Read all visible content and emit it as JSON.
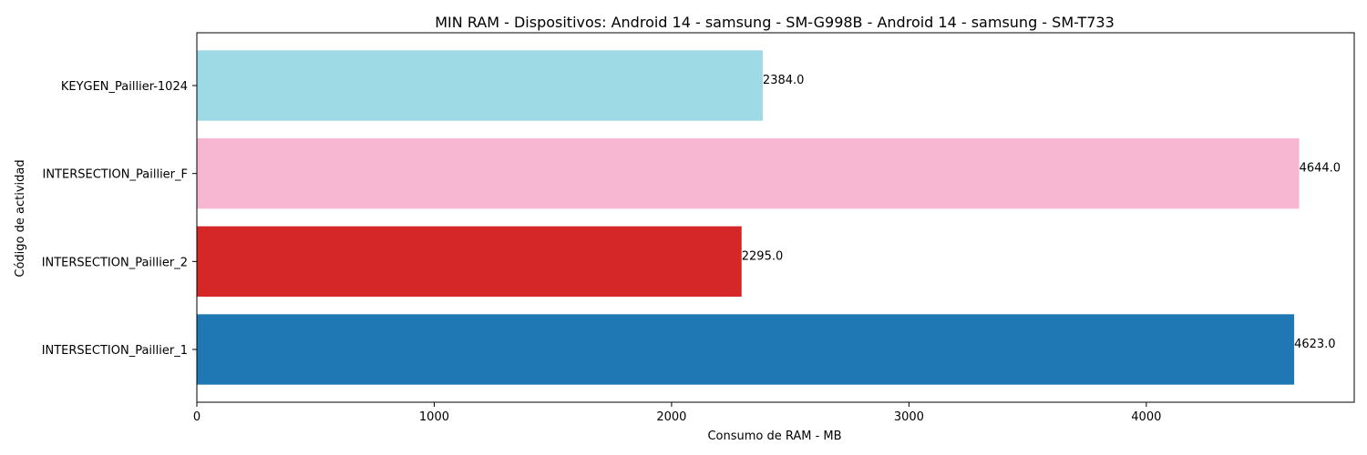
{
  "chart_data": {
    "type": "bar",
    "orientation": "horizontal",
    "title": "MIN RAM - Dispositivos: Android 14 - samsung - SM-G998B - Android 14 - samsung - SM-T733",
    "xlabel": "Consumo de RAM - MB",
    "ylabel": "Código de actividad",
    "categories": [
      "INTERSECTION_Paillier_1",
      "INTERSECTION_Paillier_2",
      "INTERSECTION_Paillier_F",
      "KEYGEN_Paillier-1024"
    ],
    "values": [
      4623.0,
      2295.0,
      4644.0,
      2384.0
    ],
    "value_labels": [
      "4623.0",
      "2295.0",
      "4644.0",
      "2384.0"
    ],
    "colors": [
      "#1f77b4",
      "#d62728",
      "#f7b6d2",
      "#9edae5"
    ],
    "xlim": [
      0,
      4876
    ],
    "xticks": [
      0,
      1000,
      2000,
      3000,
      4000
    ],
    "xtick_labels": [
      "0",
      "1000",
      "2000",
      "3000",
      "4000"
    ],
    "grid": false,
    "legend": "none"
  }
}
